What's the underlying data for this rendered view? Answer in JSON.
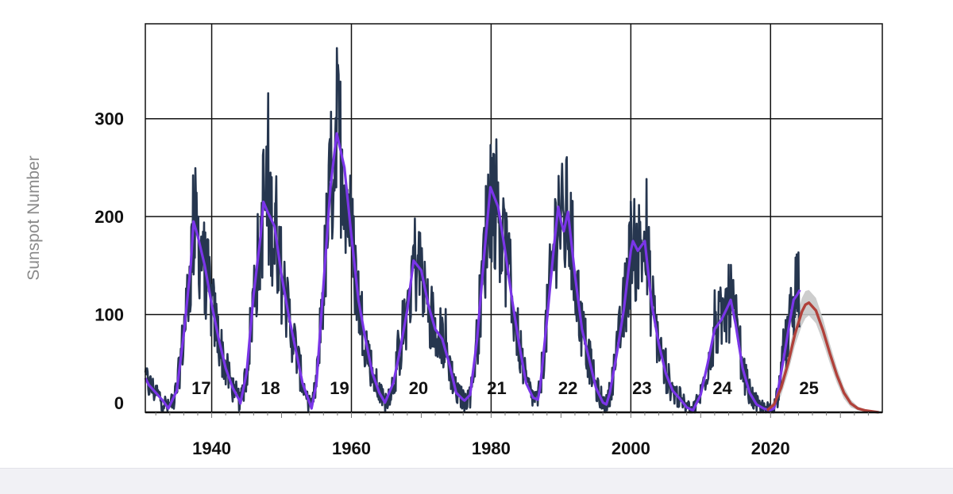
{
  "chart_data": {
    "type": "line",
    "title": "",
    "xlabel": "",
    "ylabel": "Sunspot Number",
    "xlim": [
      1930.5,
      2036
    ],
    "ylim": [
      0,
      397
    ],
    "x_ticks": [
      1940,
      1960,
      1980,
      2000,
      2020
    ],
    "y_ticks": [
      0,
      100,
      200,
      300
    ],
    "grid": true,
    "legend": "none",
    "colors": {
      "monthly": "#26364f",
      "smoothed": "#7a35e8",
      "prediction": "#b0413a",
      "prediction_band": "#c8c8c8",
      "grid": "#111111"
    },
    "cycles": [
      {
        "label": "17",
        "x": 1938.5
      },
      {
        "label": "18",
        "x": 1948.4
      },
      {
        "label": "19",
        "x": 1958.3
      },
      {
        "label": "20",
        "x": 1969.6
      },
      {
        "label": "21",
        "x": 1980.8
      },
      {
        "label": "22",
        "x": 1991.0
      },
      {
        "label": "23",
        "x": 2001.6
      },
      {
        "label": "24",
        "x": 2013.1
      },
      {
        "label": "25",
        "x": 2025.5
      }
    ],
    "series": [
      {
        "key": "smoothed",
        "x": [
          1930.5,
          1931,
          1932,
          1933,
          1933.8,
          1935,
          1936,
          1937,
          1937.4,
          1938,
          1939,
          1940,
          1941,
          1942,
          1943,
          1944,
          1944.1,
          1945,
          1946,
          1947,
          1947.4,
          1948,
          1949,
          1950,
          1951,
          1952,
          1953,
          1954,
          1954.3,
          1955,
          1956,
          1957,
          1957.9,
          1959,
          1960,
          1961,
          1962,
          1963,
          1964,
          1964.8,
          1966,
          1967,
          1968,
          1968.9,
          1970,
          1971,
          1972,
          1973,
          1974,
          1975,
          1976,
          1976.2,
          1977,
          1978,
          1979,
          1979.9,
          1981,
          1982,
          1983,
          1984,
          1985,
          1986,
          1986.7,
          1987,
          1988,
          1989,
          1989.6,
          1990,
          1990.4,
          1991,
          1992,
          1993,
          1994,
          1995,
          1996,
          1996.5,
          1997,
          1998,
          1999,
          2000,
          2000.3,
          2001,
          2002,
          2003,
          2004,
          2005,
          2006,
          2007,
          2008,
          2008.9,
          2010,
          2011,
          2012,
          2013,
          2014,
          2014.3,
          2015,
          2016,
          2017,
          2018,
          2019,
          2019.9,
          2020.5,
          2021,
          2022,
          2022.8,
          2023.3,
          2023.8,
          2024.2
        ],
        "y": [
          35,
          28,
          20,
          12,
          4,
          22,
          80,
          150,
          195,
          180,
          150,
          110,
          75,
          45,
          25,
          12,
          9,
          40,
          120,
          180,
          215,
          205,
          190,
          140,
          100,
          65,
          30,
          10,
          4,
          30,
          130,
          230,
          285,
          250,
          180,
          115,
          75,
          40,
          20,
          10,
          30,
          65,
          105,
          155,
          145,
          110,
          85,
          75,
          50,
          20,
          13,
          12,
          18,
          75,
          160,
          230,
          210,
          165,
          115,
          70,
          30,
          15,
          13,
          25,
          95,
          170,
          210,
          195,
          185,
          205,
          140,
          85,
          55,
          25,
          10,
          8,
          20,
          60,
          105,
          165,
          175,
          165,
          175,
          110,
          70,
          40,
          22,
          14,
          5,
          2,
          18,
          50,
          85,
          95,
          110,
          115,
          90,
          45,
          20,
          8,
          4,
          2,
          4,
          20,
          60,
          95,
          115,
          120,
          125
        ]
      },
      {
        "key": "prediction",
        "x": [
          2019.5,
          2020.5,
          2021.5,
          2022.5,
          2023.5,
          2024.5,
          2025.0,
          2025.5,
          2026.5,
          2027.5,
          2028.5,
          2029.5,
          2030.5,
          2031.5,
          2032.5,
          2033.5,
          2034.5,
          2035.5
        ],
        "y": [
          2,
          8,
          25,
          50,
          80,
          103,
          110,
          112,
          104,
          84,
          60,
          38,
          20,
          9,
          4,
          2,
          1,
          0
        ]
      }
    ],
    "prediction_band": {
      "x": [
        2019.5,
        2020.5,
        2021.5,
        2022.5,
        2023.5,
        2024.5,
        2025.0,
        2025.5,
        2026.5,
        2027.5,
        2028.5,
        2029.5,
        2030.5,
        2031.5,
        2032.5,
        2033.5,
        2034.5,
        2035.5
      ],
      "upper": [
        3,
        12,
        33,
        60,
        92,
        117,
        124,
        125,
        117,
        96,
        70,
        46,
        26,
        13,
        6,
        3,
        2,
        1
      ],
      "lower": [
        0,
        4,
        17,
        40,
        68,
        89,
        96,
        99,
        91,
        72,
        50,
        30,
        14,
        5,
        2,
        1,
        0,
        0
      ]
    },
    "monthly_noise_amplitude": 0.3
  }
}
